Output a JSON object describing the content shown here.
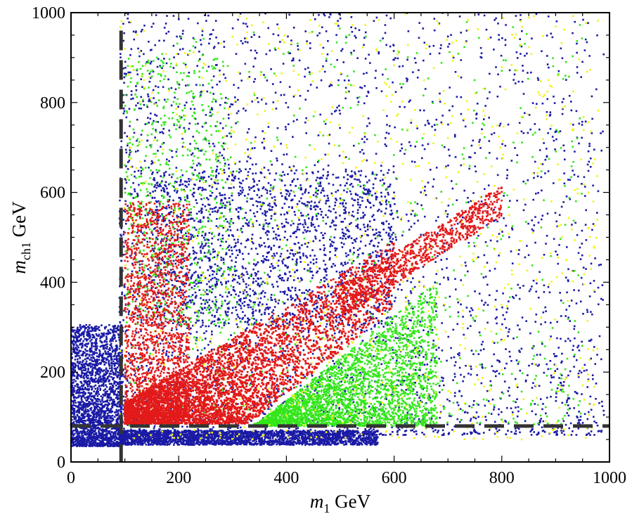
{
  "chart_data": {
    "type": "scatter",
    "xlabel": {
      "var": "m",
      "sub": "1",
      "unit": " GeV"
    },
    "ylabel": {
      "var": "m",
      "sub": "ch1",
      "unit": " GeV"
    },
    "xlim": [
      0,
      1000
    ],
    "ylim": [
      0,
      1000
    ],
    "xticks": [
      0,
      200,
      400,
      600,
      800,
      1000
    ],
    "yticks": [
      0,
      200,
      400,
      600,
      800,
      1000
    ],
    "xtick_labels": [
      "0",
      "200",
      "400",
      "600",
      "800",
      "1000"
    ],
    "ytick_labels": [
      "0",
      "200",
      "400",
      "600",
      "800",
      "1000"
    ],
    "grid": false,
    "legend": "none",
    "reference_lines": [
      {
        "orientation": "vertical",
        "x": 93,
        "style": "dashed",
        "color": "#333333"
      },
      {
        "orientation": "horizontal",
        "y": 80,
        "style": "dashed",
        "color": "#333333"
      }
    ],
    "series": [
      {
        "color": "#1a1aa6",
        "description_regions": "broad spread m1 0-980, mch1 0-1000; dense band mch1 40-70 for m1 90-560; dense block m1 0-90, mch1 40-300"
      },
      {
        "color": "#e31a1a",
        "description_regions": "dense triangle m1 100-600, mch1 90 up to ~m1 diagonal; extends along diagonal to m1 ~800, mch1 ~650"
      },
      {
        "color": "#33e61a",
        "description_regions": "dense wedge below diagonal m1 340-680, mch1 80-400; sparse m1 100-950, mch1 100-1000"
      },
      {
        "color": "#f2f21a",
        "description_regions": "sparse m1 90-980, mch1 50-1000"
      }
    ]
  }
}
